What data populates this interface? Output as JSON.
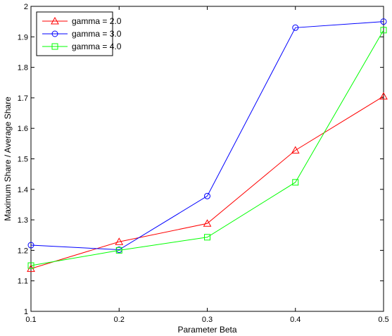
{
  "chart_data": {
    "type": "line",
    "title": "",
    "xlabel": "Parameter Beta",
    "ylabel": "Maximum Share / Average Share",
    "x": [
      0.1,
      0.2,
      0.3,
      0.4,
      0.5
    ],
    "xlim": [
      0.1,
      0.5
    ],
    "ylim": [
      1,
      2
    ],
    "xticks": [
      "0.1",
      "0.2",
      "0.3",
      "0.4",
      "0.5"
    ],
    "yticks": [
      "1",
      "1.1",
      "1.2",
      "1.3",
      "1.4",
      "1.5",
      "1.6",
      "1.7",
      "1.8",
      "1.9",
      "2"
    ],
    "grid": false,
    "legend_position": "top-left",
    "series": [
      {
        "name": "gamma = 2.0",
        "color": "#ff0000",
        "marker": "triangle",
        "values": [
          1.14,
          1.228,
          1.288,
          1.528,
          1.705
        ]
      },
      {
        "name": "gamma = 3.0",
        "color": "#0000ff",
        "marker": "circle",
        "values": [
          1.217,
          1.202,
          1.378,
          1.93,
          1.95
        ]
      },
      {
        "name": "gamma = 4.0",
        "color": "#00ff00",
        "marker": "square",
        "values": [
          1.15,
          1.2,
          1.243,
          1.423,
          1.922
        ]
      }
    ]
  }
}
